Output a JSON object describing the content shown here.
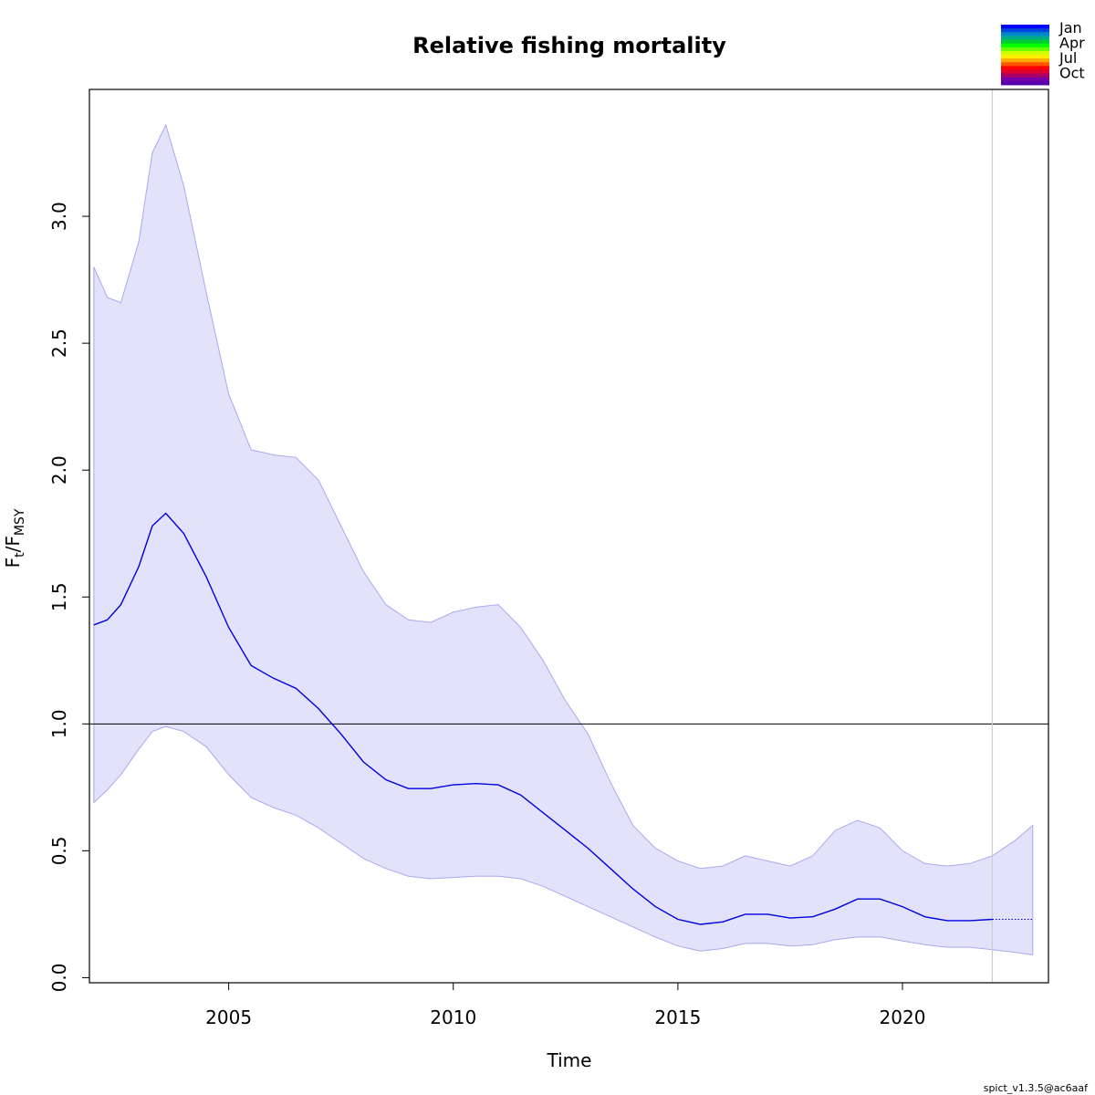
{
  "chart_data": {
    "type": "line",
    "title": "Relative fishing mortality",
    "xlabel": "Time",
    "ylabel": {
      "main": "F",
      "sub1": "t",
      "slash": "/F",
      "sub2": "MSY"
    },
    "xlim": [
      2001.9,
      2023.25
    ],
    "ylim": [
      -0.02,
      3.5
    ],
    "xticks": [
      2005,
      2010,
      2015,
      2020
    ],
    "yticks": [
      0.0,
      0.5,
      1.0,
      1.5,
      2.0,
      2.5,
      3.0
    ],
    "ytick_labels": [
      "0.0",
      "0.5",
      "1.0",
      "1.5",
      "2.0",
      "2.5",
      "3.0"
    ],
    "reference_line": {
      "y": 1.0,
      "color": "#000000"
    },
    "vertical_line": {
      "x": 2022.0,
      "color": "#cccccc"
    },
    "band_color": "#e2e2fb",
    "band_edge_color": "#a9a9ef",
    "line_color": "#0000e0",
    "series": [
      {
        "x": [
          2002.0,
          2002.3,
          2002.6,
          2003.0,
          2003.3,
          2003.6,
          2004.0,
          2004.5,
          2005.0,
          2005.5,
          2006.0,
          2006.5,
          2007.0,
          2007.5,
          2008.0,
          2008.5,
          2009.0,
          2009.5,
          2010.0,
          2010.5,
          2011.0,
          2011.5,
          2012.0,
          2012.5,
          2013.0,
          2013.5,
          2014.0,
          2014.5,
          2015.0,
          2015.5,
          2016.0,
          2016.5,
          2017.0,
          2017.5,
          2018.0,
          2018.5,
          2019.0,
          2019.5,
          2020.0,
          2020.5,
          2021.0,
          2021.5,
          2022.0
        ],
        "y": [
          1.39,
          1.41,
          1.47,
          1.62,
          1.78,
          1.83,
          1.75,
          1.58,
          1.38,
          1.23,
          1.18,
          1.14,
          1.06,
          0.96,
          0.85,
          0.78,
          0.745,
          0.745,
          0.76,
          0.765,
          0.76,
          0.72,
          0.65,
          0.58,
          0.51,
          0.43,
          0.35,
          0.28,
          0.23,
          0.21,
          0.22,
          0.25,
          0.25,
          0.235,
          0.24,
          0.27,
          0.31,
          0.31,
          0.28,
          0.24,
          0.225,
          0.225,
          0.23
        ]
      },
      {
        "x": [
          2022.0,
          2022.5,
          2022.9
        ],
        "y": [
          0.23,
          0.23,
          0.23
        ],
        "style": "dotted"
      }
    ],
    "band": {
      "x": [
        2002.0,
        2002.3,
        2002.6,
        2003.0,
        2003.3,
        2003.6,
        2004.0,
        2004.5,
        2005.0,
        2005.5,
        2006.0,
        2006.5,
        2007.0,
        2007.5,
        2008.0,
        2008.5,
        2009.0,
        2009.5,
        2010.0,
        2010.5,
        2011.0,
        2011.5,
        2012.0,
        2012.5,
        2013.0,
        2013.5,
        2014.0,
        2014.5,
        2015.0,
        2015.5,
        2016.0,
        2016.5,
        2017.0,
        2017.5,
        2018.0,
        2018.5,
        2019.0,
        2019.5,
        2020.0,
        2020.5,
        2021.0,
        2021.5,
        2022.0,
        2022.5,
        2022.9
      ],
      "upper": [
        2.8,
        2.68,
        2.66,
        2.9,
        3.25,
        3.36,
        3.12,
        2.7,
        2.3,
        2.08,
        2.06,
        2.05,
        1.96,
        1.78,
        1.6,
        1.47,
        1.41,
        1.4,
        1.44,
        1.46,
        1.47,
        1.38,
        1.25,
        1.09,
        0.96,
        0.77,
        0.6,
        0.51,
        0.46,
        0.43,
        0.44,
        0.48,
        0.46,
        0.44,
        0.48,
        0.58,
        0.62,
        0.59,
        0.5,
        0.45,
        0.44,
        0.45,
        0.48,
        0.54,
        0.6
      ],
      "lower": [
        0.69,
        0.74,
        0.8,
        0.9,
        0.97,
        0.99,
        0.97,
        0.91,
        0.8,
        0.71,
        0.67,
        0.64,
        0.59,
        0.53,
        0.47,
        0.43,
        0.4,
        0.39,
        0.395,
        0.4,
        0.4,
        0.39,
        0.36,
        0.32,
        0.28,
        0.24,
        0.2,
        0.16,
        0.125,
        0.105,
        0.115,
        0.135,
        0.135,
        0.125,
        0.13,
        0.15,
        0.16,
        0.16,
        0.145,
        0.13,
        0.12,
        0.12,
        0.11,
        0.1,
        0.09
      ]
    },
    "season_legend": {
      "labels": [
        "Jan",
        "Apr",
        "Jul",
        "Oct"
      ],
      "colors": [
        "#0000ff",
        "#0044dd",
        "#0088cc",
        "#00aa88",
        "#00cc33",
        "#00ff00",
        "#66ff00",
        "#ccff00",
        "#ffee00",
        "#ffaa00",
        "#ff5500",
        "#ff0000",
        "#dd0033",
        "#aa0066",
        "#7700aa",
        "#5500aa"
      ]
    },
    "footer": "spict_v1.3.5@ac6aaf"
  }
}
